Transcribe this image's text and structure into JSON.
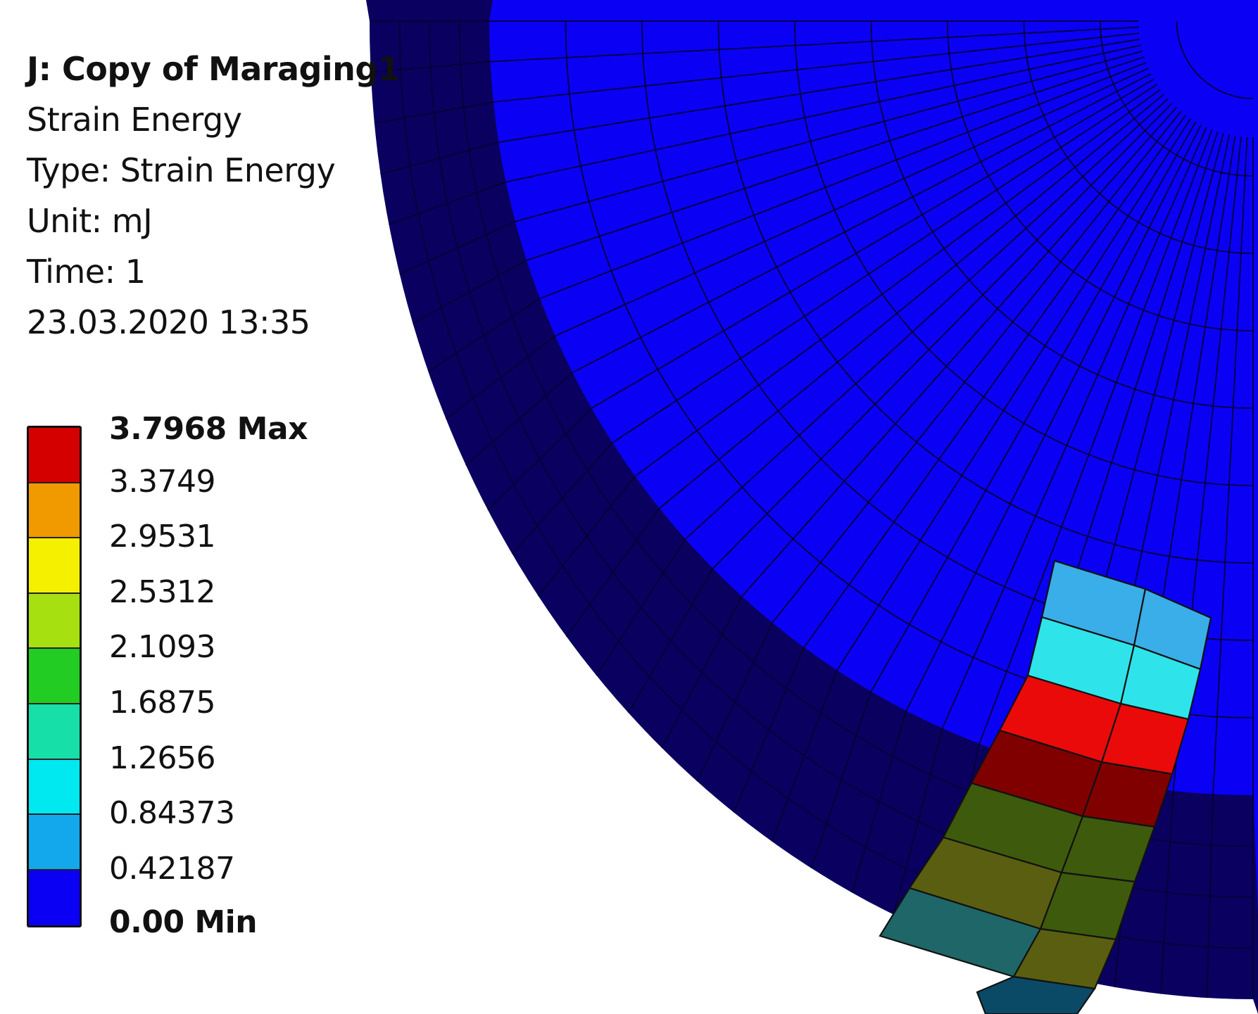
{
  "header": {
    "title": "J: Copy of Maraging1",
    "result_name": "Strain Energy",
    "type": "Type: Strain Energy",
    "unit": "Unit: mJ",
    "time": "Time: 1",
    "timestamp": "23.03.2020 13:35"
  },
  "legend": {
    "max_label": "3.7968 Max",
    "min_label": "0.00 Min",
    "ticks": [
      "3.3749",
      "2.9531",
      "2.5312",
      "2.1093",
      "1.6875",
      "1.2656",
      "0.84373",
      "0.42187"
    ],
    "bands": [
      "#d40000",
      "#f09a00",
      "#f4f000",
      "#a6e010",
      "#22cc22",
      "#16e0a8",
      "#00e8f0",
      "#13a8ec",
      "#0a00f4"
    ]
  },
  "colors": {
    "top_face": "#0a00f4",
    "side_face": "#0a0060",
    "mesh_lines": "#08003a",
    "hot_elements": [
      "#3aaee8",
      "#2ee4ea",
      "#ea0a0a",
      "#800000",
      "#3e5a0c",
      "#5a5e10",
      "#1e6668",
      "#0a4a66"
    ]
  }
}
